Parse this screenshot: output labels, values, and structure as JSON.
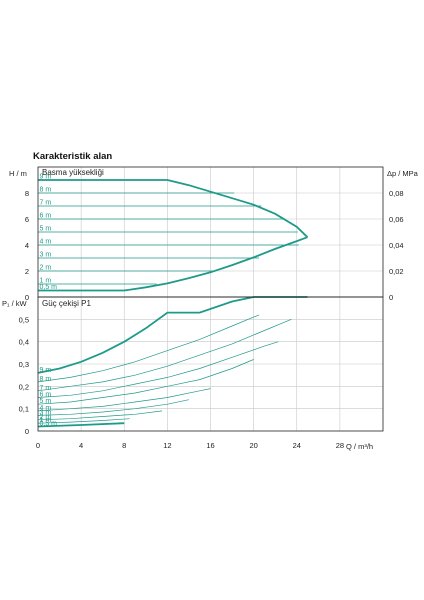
{
  "chart_data": {
    "title": "Karakteristik alan",
    "type": "line",
    "colors": {
      "curve": "#1e9a8a",
      "grid": "#c8c8c8",
      "axis": "#222222"
    },
    "x_axis": {
      "label": "Q / m³/h",
      "range": [
        0,
        32
      ],
      "ticks": [
        0,
        4,
        8,
        12,
        16,
        20,
        24,
        28
      ]
    },
    "head_panel": {
      "label": "Basma yüksekliği",
      "y_label": "H / m",
      "y_range": [
        0,
        10
      ],
      "y_ticks": [
        0,
        2,
        4,
        6,
        8
      ],
      "y2_label": "Δp / MPa",
      "y2_ticks": [
        "0",
        "0,02",
        "0,04",
        "0,06",
        "0,08"
      ],
      "series": [
        {
          "name": "9 m",
          "x": [
            0,
            12
          ],
          "y": [
            9,
            9
          ]
        },
        {
          "name": "8 m",
          "x": [
            0,
            18.2
          ],
          "y": [
            8,
            8
          ]
        },
        {
          "name": "7 m",
          "x": [
            0,
            20.7
          ],
          "y": [
            7,
            7
          ]
        },
        {
          "name": "6 m",
          "x": [
            0,
            22.8
          ],
          "y": [
            6,
            6
          ]
        },
        {
          "name": "5 m",
          "x": [
            0,
            24.1
          ],
          "y": [
            5,
            5
          ]
        },
        {
          "name": "4 m",
          "x": [
            0,
            24.2
          ],
          "y": [
            4,
            4
          ]
        },
        {
          "name": "3 m",
          "x": [
            0,
            20.5
          ],
          "y": [
            3,
            3
          ]
        },
        {
          "name": "2 m",
          "x": [
            0,
            16.5
          ],
          "y": [
            2,
            2
          ]
        },
        {
          "name": "1 m",
          "x": [
            0,
            11
          ],
          "y": [
            1,
            1
          ]
        },
        {
          "name": "0,5 m",
          "x": [
            0,
            8
          ],
          "y": [
            0.5,
            0.5
          ]
        }
      ],
      "max_curve": {
        "x": [
          0,
          12,
          14,
          16,
          18,
          20,
          22,
          24,
          25
        ],
        "y": [
          9,
          9,
          8.6,
          8.1,
          7.6,
          7.1,
          6.4,
          5.4,
          4.6
        ]
      },
      "min_curve": {
        "x": [
          0,
          8,
          10,
          12,
          14,
          16,
          18,
          20,
          22,
          24,
          25
        ],
        "y": [
          0.5,
          0.5,
          0.75,
          1.05,
          1.45,
          1.9,
          2.45,
          3.05,
          3.7,
          4.3,
          4.6
        ]
      }
    },
    "power_panel": {
      "label": "Güç çekişi P1",
      "y_label": "P₁ / kW",
      "y_range": [
        0,
        0.6
      ],
      "y_ticks": [
        "0",
        "0,1",
        "0,2",
        "0,3",
        "0,4",
        "0,5"
      ],
      "y_tick_values": [
        0,
        0.1,
        0.2,
        0.3,
        0.4,
        0.5
      ],
      "series": [
        {
          "name": "9 m",
          "x": [
            0,
            2,
            4,
            6,
            8,
            10,
            12
          ],
          "y": [
            0.26,
            0.28,
            0.31,
            0.35,
            0.4,
            0.46,
            0.53
          ]
        },
        {
          "name": "8 m",
          "x": [
            0,
            3,
            6,
            9,
            12,
            15,
            18,
            20.5
          ],
          "y": [
            0.22,
            0.24,
            0.27,
            0.31,
            0.36,
            0.41,
            0.47,
            0.52
          ]
        },
        {
          "name": "7 m",
          "x": [
            0,
            3,
            6,
            9,
            12,
            15,
            18,
            21,
            23.5
          ],
          "y": [
            0.18,
            0.2,
            0.22,
            0.25,
            0.29,
            0.34,
            0.39,
            0.45,
            0.5
          ]
        },
        {
          "name": "6 m",
          "x": [
            0,
            3,
            6,
            9,
            12,
            15,
            18,
            21,
            22.3
          ],
          "y": [
            0.15,
            0.16,
            0.18,
            0.21,
            0.24,
            0.28,
            0.33,
            0.38,
            0.4
          ]
        },
        {
          "name": "5 m",
          "x": [
            0,
            3,
            6,
            9,
            12,
            15,
            18,
            20
          ],
          "y": [
            0.12,
            0.13,
            0.15,
            0.17,
            0.2,
            0.23,
            0.28,
            0.32
          ]
        },
        {
          "name": "4 m",
          "x": [
            0,
            3,
            6,
            9,
            12,
            15,
            16
          ],
          "y": [
            0.09,
            0.1,
            0.11,
            0.13,
            0.15,
            0.18,
            0.19
          ]
        },
        {
          "name": "3 m",
          "x": [
            0,
            3,
            6,
            9,
            12,
            14
          ],
          "y": [
            0.07,
            0.075,
            0.085,
            0.1,
            0.12,
            0.14
          ]
        },
        {
          "name": "2 m",
          "x": [
            0,
            3,
            6,
            9,
            11.5
          ],
          "y": [
            0.05,
            0.055,
            0.065,
            0.075,
            0.09
          ]
        },
        {
          "name": "1 m",
          "x": [
            0,
            3,
            6,
            8.5
          ],
          "y": [
            0.035,
            0.04,
            0.047,
            0.055
          ]
        },
        {
          "name": "0,5 m",
          "x": [
            0,
            3,
            6,
            8
          ],
          "y": [
            0.02,
            0.025,
            0.03,
            0.035
          ]
        }
      ],
      "max_curve": {
        "x": [
          0,
          2,
          4,
          6,
          8,
          10,
          12,
          15,
          18,
          20,
          24,
          25
        ],
        "y": [
          0.26,
          0.28,
          0.31,
          0.35,
          0.4,
          0.46,
          0.53,
          0.53,
          0.58,
          0.6,
          0.6,
          0.6
        ]
      },
      "min_curve": {
        "x": [
          0,
          4,
          8
        ],
        "y": [
          0.02,
          0.027,
          0.035
        ]
      }
    }
  }
}
